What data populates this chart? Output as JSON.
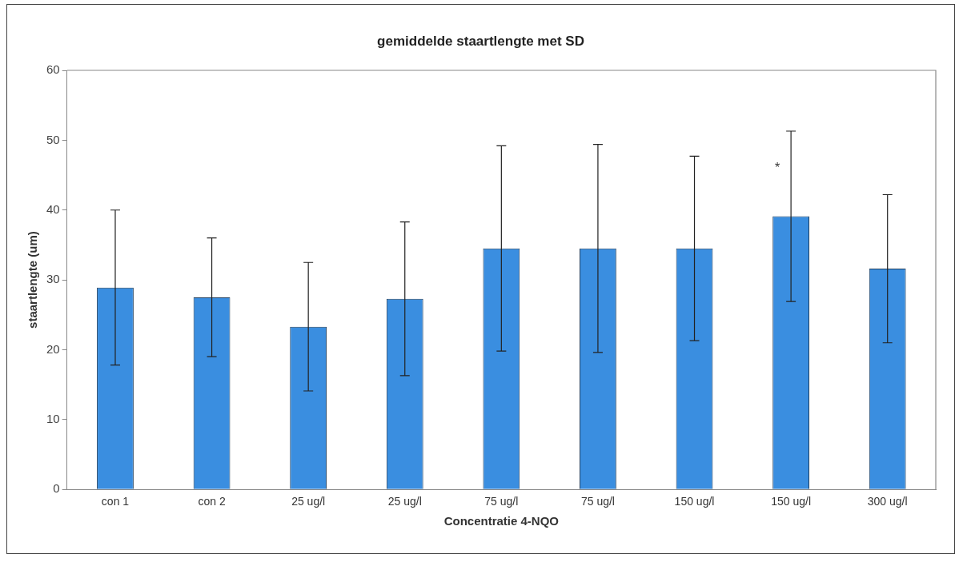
{
  "chart_data": {
    "type": "bar",
    "title": "gemiddelde staartlengte met SD",
    "xlabel": "Concentratie 4-NQO",
    "ylabel": "staartlengte (um)",
    "categories": [
      "con 1",
      "con 2",
      "25 ug/l",
      "25 ug/l",
      "75 ug/l",
      "75 ug/l",
      "150 ug/l",
      "150 ug/l",
      "300 ug/l"
    ],
    "values": [
      28.9,
      27.5,
      23.3,
      27.3,
      34.5,
      34.5,
      34.5,
      39.1,
      31.6
    ],
    "errors": [
      11.1,
      8.5,
      9.2,
      11,
      14.7,
      14.9,
      13.2,
      12.2,
      10.6
    ],
    "color": "#3a8ee0",
    "ylim": [
      0,
      60
    ],
    "yticks": [
      0,
      10,
      20,
      30,
      40,
      50,
      60
    ],
    "grid": false,
    "legend": false,
    "annotations": [
      "*"
    ]
  }
}
